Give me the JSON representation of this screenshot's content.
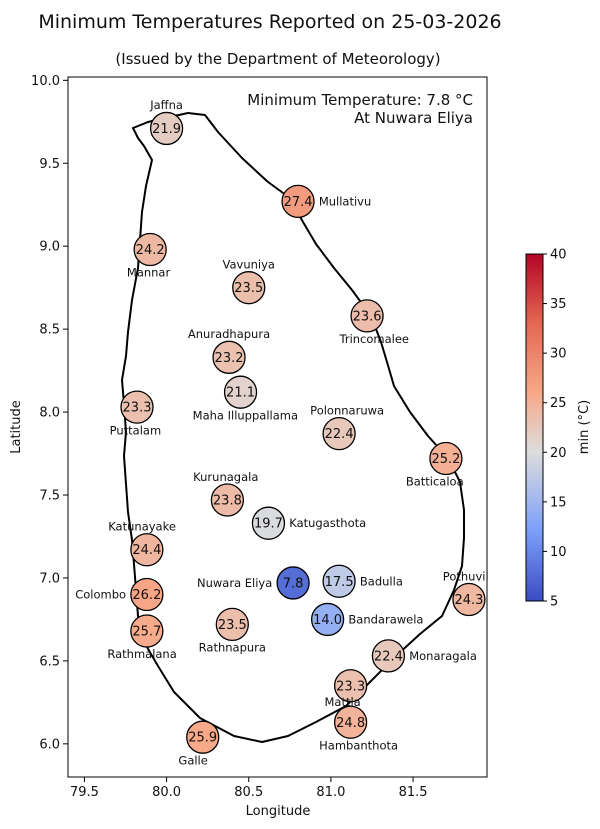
{
  "chart_data": {
    "type": "scatter",
    "title": "Minimum Temperatures Reported on 25-03-2026",
    "subtitle": "(Issued by the Department of Meteorology)",
    "xlabel": "Longitude",
    "ylabel": "Latitude",
    "xlim": [
      79.4,
      81.95
    ],
    "ylim": [
      5.8,
      10.02
    ],
    "xticks": [
      "79.5",
      "80.0",
      "80.5",
      "81.0",
      "81.5"
    ],
    "yticks": [
      "6.0",
      "6.5",
      "7.0",
      "7.5",
      "8.0",
      "8.5",
      "9.0",
      "9.5",
      "10.0"
    ],
    "grid": false,
    "annotation": [
      "Minimum Temperature: 7.8 °C",
      "At Nuwara Eliya"
    ],
    "colorbar": {
      "label": "min (°C)",
      "min": 5,
      "max": 40,
      "ticks": [
        "5",
        "10",
        "15",
        "20",
        "25",
        "30",
        "35",
        "40"
      ],
      "colormap": "coolwarm"
    },
    "points": [
      {
        "name": "Jaffna",
        "lon": 80.0,
        "lat": 9.71,
        "value": "21.9"
      },
      {
        "name": "Mullativu",
        "lon": 80.8,
        "lat": 9.27,
        "value": "27.4"
      },
      {
        "name": "Mannar",
        "lon": 79.9,
        "lat": 8.98,
        "value": "24.2"
      },
      {
        "name": "Vavuniya",
        "lon": 80.5,
        "lat": 8.75,
        "value": "23.5"
      },
      {
        "name": "Trincomalee",
        "lon": 81.22,
        "lat": 8.58,
        "value": "23.6"
      },
      {
        "name": "Anuradhapura",
        "lon": 80.38,
        "lat": 8.33,
        "value": "23.2"
      },
      {
        "name": "Maha Illuppallama",
        "lon": 80.45,
        "lat": 8.12,
        "value": "21.1"
      },
      {
        "name": "Puttalam",
        "lon": 79.82,
        "lat": 8.03,
        "value": "23.3"
      },
      {
        "name": "Polonnaruwa",
        "lon": 81.05,
        "lat": 7.87,
        "value": "22.4"
      },
      {
        "name": "Batticaloa",
        "lon": 81.7,
        "lat": 7.72,
        "value": "25.2"
      },
      {
        "name": "Kurunagala",
        "lon": 80.37,
        "lat": 7.47,
        "value": "23.8"
      },
      {
        "name": "Katugasthota",
        "lon": 80.62,
        "lat": 7.33,
        "value": "19.7"
      },
      {
        "name": "Katunayake",
        "lon": 79.88,
        "lat": 7.17,
        "value": "24.4"
      },
      {
        "name": "Nuwara Eliya",
        "lon": 80.77,
        "lat": 6.97,
        "value": "7.8"
      },
      {
        "name": "Badulla",
        "lon": 81.05,
        "lat": 6.98,
        "value": "17.5"
      },
      {
        "name": "Pothuvil",
        "lon": 81.84,
        "lat": 6.87,
        "value": "24.3"
      },
      {
        "name": "Colombo",
        "lon": 79.88,
        "lat": 6.9,
        "value": "26.2"
      },
      {
        "name": "Bandarawela",
        "lon": 80.98,
        "lat": 6.75,
        "value": "14.0"
      },
      {
        "name": "Rathnapura",
        "lon": 80.4,
        "lat": 6.72,
        "value": "23.5"
      },
      {
        "name": "Rathmalana",
        "lon": 79.88,
        "lat": 6.68,
        "value": "25.7"
      },
      {
        "name": "Monaragala",
        "lon": 81.35,
        "lat": 6.53,
        "value": "22.4"
      },
      {
        "name": "Mattla",
        "lon": 81.12,
        "lat": 6.35,
        "value": "23.3"
      },
      {
        "name": "Hambanthota",
        "lon": 81.12,
        "lat": 6.13,
        "value": "24.8"
      },
      {
        "name": "Galle",
        "lon": 80.22,
        "lat": 6.04,
        "value": "25.9"
      }
    ]
  }
}
